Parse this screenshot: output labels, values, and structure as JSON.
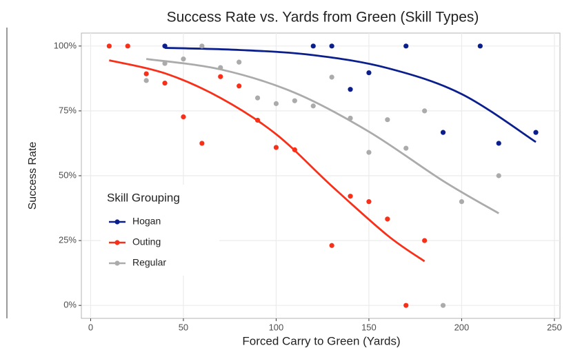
{
  "chart_data": {
    "type": "scatter",
    "title": "Success Rate vs. Yards from Green (Skill Types)",
    "x_label": "Forced Carry to Green (Yards)",
    "y_label": "Success Rate",
    "legend_title": "Skill Grouping",
    "legend_position": "left",
    "grid": true,
    "xlim": [
      -5,
      253
    ],
    "ylim": [
      -5,
      105
    ],
    "xticks": [
      0,
      50,
      100,
      150,
      200,
      250
    ],
    "yticks": [
      {
        "value": 0,
        "label": "0%"
      },
      {
        "value": 25,
        "label": "25%"
      },
      {
        "value": 50,
        "label": "50%"
      },
      {
        "value": 75,
        "label": "75%"
      },
      {
        "value": 100,
        "label": "100%"
      }
    ],
    "series": [
      {
        "name": "Hogan",
        "color": "#0b1f8c",
        "x": [
          40,
          120,
          130,
          170,
          210,
          150,
          140,
          190,
          240,
          220
        ],
        "values": [
          100,
          100,
          100,
          100,
          100,
          89.7,
          83.3,
          66.7,
          66.7,
          62.5
        ],
        "fit": {
          "x": [
            40,
            80,
            120,
            160,
            200,
            240
          ],
          "values": [
            99.3,
            98.5,
            96.5,
            91.5,
            81.5,
            63
          ]
        }
      },
      {
        "name": "Outing",
        "color": "#f8301a",
        "x": [
          10,
          20,
          30,
          40,
          50,
          60,
          70,
          80,
          90,
          100,
          110,
          130,
          140,
          150,
          160,
          170,
          180
        ],
        "values": [
          100,
          100,
          89.3,
          85.7,
          72.7,
          62.5,
          88.2,
          84.6,
          71.4,
          60.9,
          60,
          23.1,
          42.1,
          40,
          33.3,
          0,
          25
        ],
        "fit": {
          "x": [
            10,
            40,
            70,
            100,
            130,
            160,
            180
          ],
          "values": [
            94.5,
            89.5,
            80,
            66,
            46,
            27,
            17
          ]
        }
      },
      {
        "name": "Regular",
        "color": "#ababab",
        "x": [
          30,
          40,
          50,
          60,
          70,
          80,
          90,
          100,
          110,
          120,
          130,
          140,
          150,
          160,
          170,
          180,
          190,
          200,
          220
        ],
        "values": [
          86.7,
          93.3,
          95,
          100,
          91.7,
          93.8,
          80,
          77.8,
          78.9,
          76.9,
          88,
          72.2,
          59,
          71.6,
          60.6,
          75,
          0,
          40,
          50
        ],
        "fit": {
          "x": [
            30,
            70,
            110,
            150,
            190,
            220
          ],
          "values": [
            95,
            91,
            82,
            67,
            48,
            35.5
          ]
        }
      }
    ]
  }
}
